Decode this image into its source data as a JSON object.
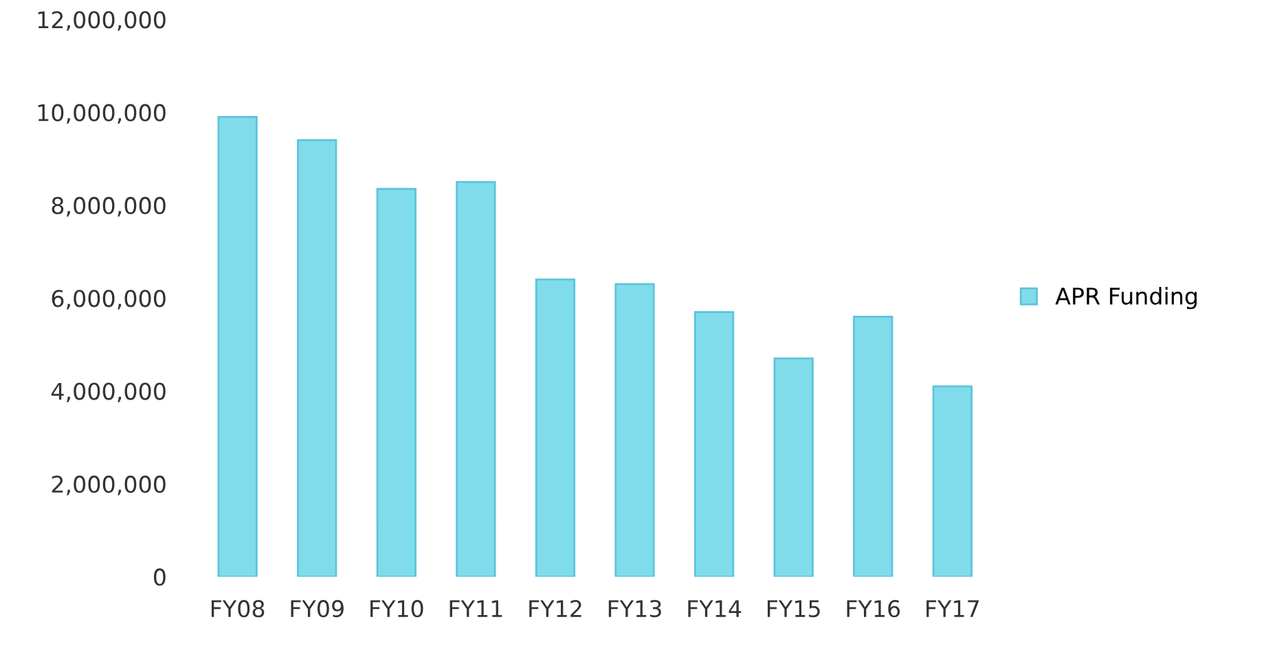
{
  "chart_data": {
    "type": "bar",
    "categories": [
      "FY08",
      "FY09",
      "FY10",
      "FY11",
      "FY12",
      "FY13",
      "FY14",
      "FY15",
      "FY16",
      "FY17"
    ],
    "series": [
      {
        "name": "APR Funding",
        "color": "#80dcea",
        "values": [
          9900000,
          9400000,
          8350000,
          8500000,
          6400000,
          6300000,
          5700000,
          4700000,
          5600000,
          4100000
        ]
      }
    ],
    "ylim": [
      0,
      12000000
    ],
    "yticks": [
      {
        "value": 0,
        "label": "0"
      },
      {
        "value": 2000000,
        "label": "2,000,000"
      },
      {
        "value": 4000000,
        "label": "4,000,000"
      },
      {
        "value": 6000000,
        "label": "6,000,000"
      },
      {
        "value": 8000000,
        "label": "8,000,000"
      },
      {
        "value": 10000000,
        "label": "10,000,000"
      },
      {
        "value": 12000000,
        "label": "12,000,000"
      }
    ],
    "grid": false,
    "legend": "right"
  }
}
